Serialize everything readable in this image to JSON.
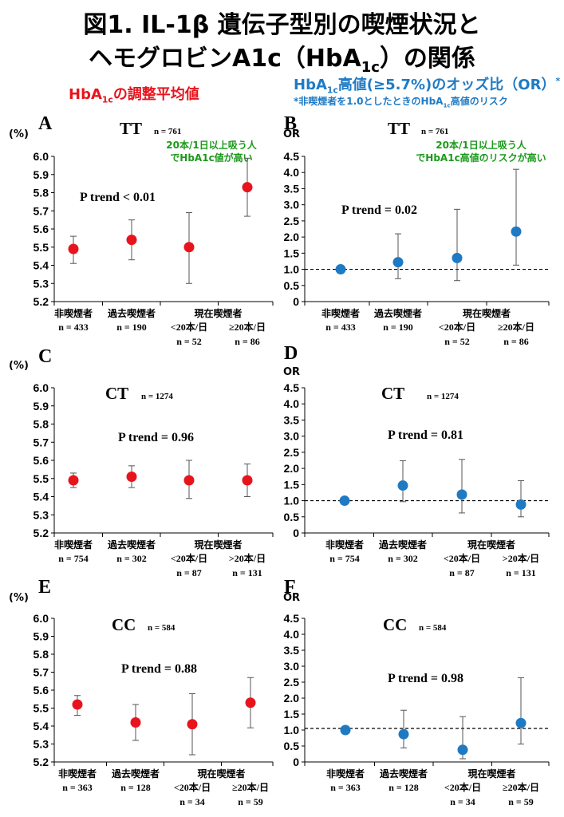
{
  "title": {
    "line1": "図1. IL-1β 遺伝子型別の喫煙状況と",
    "line2": "ヘモグロビンA1c（HbA1c）の関係"
  },
  "left_header": "HbA1cの調整平均値",
  "right_header": "HbA1c高値(≥5.7%)のオッズ比（OR）*",
  "right_note": "*非喫煙者を1.0としたときのHbA1c高値のリスク",
  "colors": {
    "red": "#e8141d",
    "blue": "#1f7ac4",
    "green": "#1a9a1a"
  },
  "chart_data": [
    {
      "panel": "A",
      "type": "scatter",
      "genotype": "TT",
      "n_label": "n = 761",
      "y_unit": "(%)",
      "ylim": [
        5.2,
        6.0
      ],
      "ticks": [
        "5.2",
        "5.3",
        "5.4",
        "5.5",
        "5.6",
        "5.7",
        "5.8",
        "5.9",
        "6.0"
      ],
      "p_trend": "P trend < 0.01",
      "annotation": [
        "20本/1日以上吸う人",
        "でHbA1c値が高い"
      ],
      "categories": [
        "非喫煙者",
        "過去喫煙者",
        "<20本/日",
        "≥20本/日"
      ],
      "group_label": "現在喫煙者",
      "n": [
        "n = 433",
        "n = 190",
        "n = 52",
        "n = 86"
      ],
      "values": [
        5.49,
        5.54,
        5.5,
        5.83
      ],
      "lower": [
        5.41,
        5.43,
        5.3,
        5.67
      ],
      "upper": [
        5.56,
        5.65,
        5.69,
        5.99
      ]
    },
    {
      "panel": "B",
      "type": "scatter",
      "genotype": "TT",
      "n_label": "n = 761",
      "y_unit": "OR",
      "ylim": [
        0,
        4.5
      ],
      "ticks": [
        "0",
        "0.5",
        "1.0",
        "1.5",
        "2.0",
        "2.5",
        "3.0",
        "3.5",
        "4.0",
        "4.5"
      ],
      "reference": 1.0,
      "p_trend": "P trend = 0.02",
      "annotation": [
        "20本/1日以上吸う人",
        "でHbA1c高値のリスクが高い"
      ],
      "categories": [
        "非喫煙者",
        "過去喫煙者",
        "<20本/日",
        "≥20本/日"
      ],
      "group_label": "現在喫煙者",
      "n": [
        "n = 433",
        "n = 190",
        "n = 52",
        "n = 86"
      ],
      "values": [
        1.0,
        1.22,
        1.35,
        2.17
      ],
      "lower": [
        1.0,
        0.71,
        0.65,
        1.13
      ],
      "upper": [
        1.0,
        2.1,
        2.86,
        4.1
      ]
    },
    {
      "panel": "C",
      "type": "scatter",
      "genotype": "CT",
      "n_label": "n = 1274",
      "y_unit": "(%)",
      "ylim": [
        5.2,
        6.0
      ],
      "ticks": [
        "5.2",
        "5.3",
        "5.4",
        "5.5",
        "5.6",
        "5.7",
        "5.8",
        "5.9",
        "6.0"
      ],
      "p_trend": "P trend = 0.96",
      "categories": [
        "非喫煙者",
        "過去喫煙者",
        "<20本/日",
        ">20本/日"
      ],
      "group_label": "現在喫煙者",
      "n": [
        "n = 754",
        "n = 302",
        "n = 87",
        "n = 131"
      ],
      "values": [
        5.49,
        5.51,
        5.49,
        5.49
      ],
      "lower": [
        5.45,
        5.45,
        5.39,
        5.4
      ],
      "upper": [
        5.53,
        5.57,
        5.6,
        5.58
      ]
    },
    {
      "panel": "D",
      "type": "scatter",
      "genotype": "CT",
      "n_label": "n = 1274",
      "y_unit": "OR",
      "ylim": [
        0,
        4.5
      ],
      "ticks": [
        "0",
        "0.5",
        "1.0",
        "1.5",
        "2.0",
        "2.5",
        "3.0",
        "3.5",
        "4.0",
        "4.5"
      ],
      "reference": 1.0,
      "p_trend": "P trend = 0.81",
      "categories": [
        "非喫煙者",
        "過去喫煙者",
        "<20本/日",
        ">20本/日"
      ],
      "group_label": "現在喫煙者",
      "n": [
        "n = 754",
        "n = 302",
        "n = 87",
        "n = 131"
      ],
      "values": [
        1.0,
        1.47,
        1.19,
        0.88
      ],
      "lower": [
        1.0,
        0.97,
        0.62,
        0.5
      ],
      "upper": [
        1.0,
        2.24,
        2.28,
        1.62
      ]
    },
    {
      "panel": "E",
      "type": "scatter",
      "genotype": "CC",
      "n_label": "n = 584",
      "y_unit": "(%)",
      "ylim": [
        5.2,
        6.0
      ],
      "ticks": [
        "5.2",
        "5.3",
        "5.4",
        "5.5",
        "5.6",
        "5.7",
        "5.8",
        "5.9",
        "6.0"
      ],
      "p_trend": "P trend = 0.88",
      "categories": [
        "非喫煙者",
        "過去喫煙者",
        "<20本/日",
        "≥20本/日"
      ],
      "group_label": "現在喫煙者",
      "n": [
        "n = 363",
        "n = 128",
        "n = 34",
        "n = 59"
      ],
      "values": [
        5.52,
        5.42,
        5.41,
        5.53
      ],
      "lower": [
        5.46,
        5.32,
        5.24,
        5.39
      ],
      "upper": [
        5.57,
        5.52,
        5.58,
        5.67
      ]
    },
    {
      "panel": "F",
      "type": "scatter",
      "genotype": "CC",
      "n_label": "n = 584",
      "y_unit": "OR",
      "ylim": [
        0,
        4.5
      ],
      "ticks": [
        "0",
        "0.5",
        "1.0",
        "1.5",
        "2.0",
        "2.5",
        "3.0",
        "3.5",
        "4.0",
        "4.5"
      ],
      "reference": 1.05,
      "p_trend": "P trend = 0.98",
      "categories": [
        "非喫煙者",
        "過去喫煙者",
        "<20本/日",
        "≥20本/日"
      ],
      "group_label": "現在喫煙者",
      "n": [
        "n = 363",
        "n = 128",
        "n = 34",
        "n = 59"
      ],
      "values": [
        1.0,
        0.87,
        0.38,
        1.22
      ],
      "lower": [
        1.0,
        0.44,
        0.1,
        0.56
      ],
      "upper": [
        1.0,
        1.62,
        1.42,
        2.64
      ]
    }
  ]
}
